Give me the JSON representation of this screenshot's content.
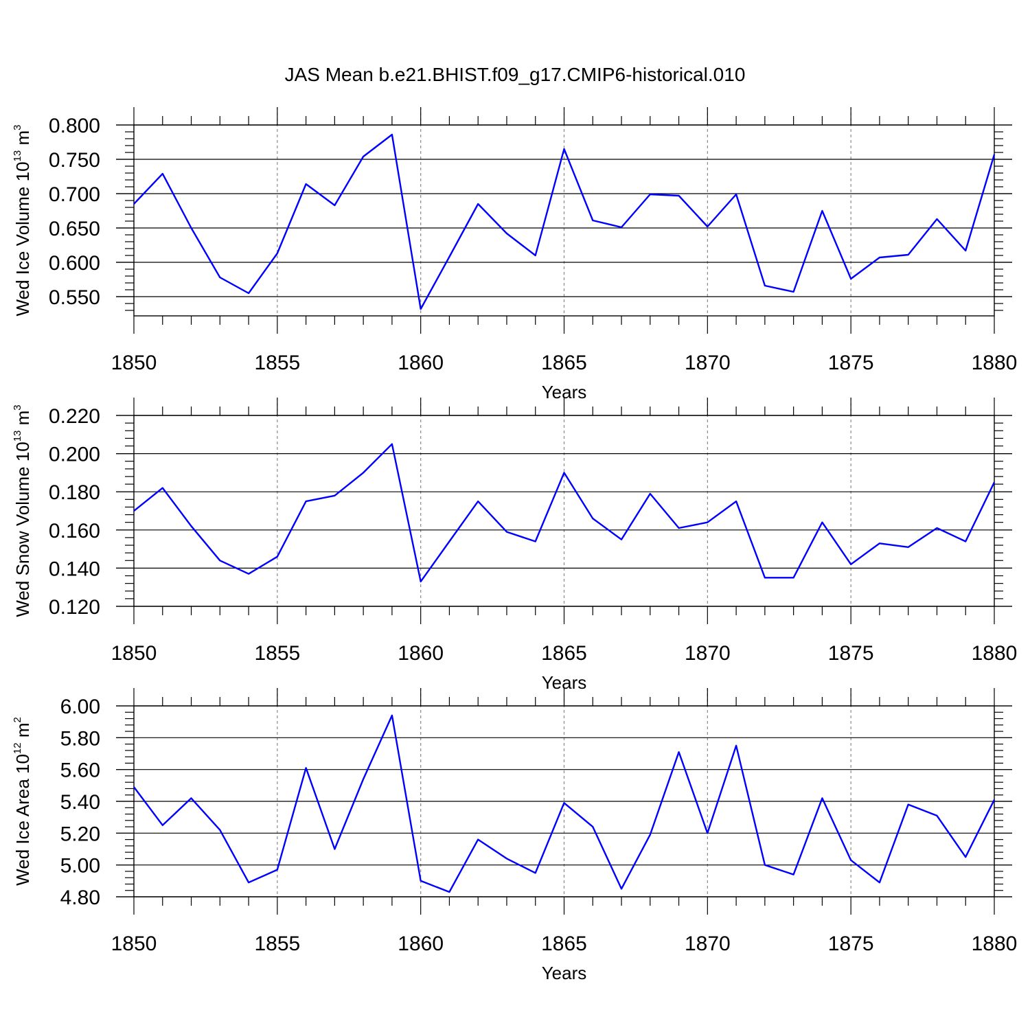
{
  "title": "JAS Mean b.e21.BHIST.f09_g17.CMIP6-historical.010",
  "chart_data": [
    {
      "type": "line",
      "ylabel": {
        "base": "Wed Ice Volume 10",
        "exp": "13",
        "unit": " m",
        "unit_exp": "3"
      },
      "xlabel": "Years",
      "xlim": [
        1850,
        1880
      ],
      "xticks": [
        "1850",
        "1855",
        "1860",
        "1865",
        "1870",
        "1875",
        "1880"
      ],
      "ylim": [
        0.522,
        0.8
      ],
      "yticks": [
        "0.800",
        "0.750",
        "0.700",
        "0.650",
        "0.600",
        "0.550"
      ],
      "color": "#0000ff",
      "x": [
        1850,
        1851,
        1852,
        1853,
        1854,
        1855,
        1856,
        1857,
        1858,
        1859,
        1860,
        1861,
        1862,
        1863,
        1864,
        1865,
        1866,
        1867,
        1868,
        1869,
        1870,
        1871,
        1872,
        1873,
        1874,
        1875,
        1876,
        1877,
        1878,
        1879,
        1880
      ],
      "values": [
        0.685,
        0.729,
        0.65,
        0.578,
        0.555,
        0.613,
        0.714,
        0.683,
        0.754,
        0.786,
        0.532,
        0.608,
        0.685,
        0.642,
        0.61,
        0.765,
        0.661,
        0.651,
        0.699,
        0.697,
        0.652,
        0.699,
        0.566,
        0.557,
        0.675,
        0.576,
        0.607,
        0.611,
        0.663,
        0.617,
        0.757
      ]
    },
    {
      "type": "line",
      "ylabel": {
        "base": "Wed Snow Volume 10",
        "exp": "13",
        "unit": " m",
        "unit_exp": "3"
      },
      "xlabel": "Years",
      "xlim": [
        1850,
        1880
      ],
      "xticks": [
        "1850",
        "1855",
        "1860",
        "1865",
        "1870",
        "1875",
        "1880"
      ],
      "ylim": [
        0.12,
        0.22
      ],
      "yticks": [
        "0.220",
        "0.200",
        "0.180",
        "0.160",
        "0.140",
        "0.120"
      ],
      "color": "#0000ff",
      "x": [
        1850,
        1851,
        1852,
        1853,
        1854,
        1855,
        1856,
        1857,
        1858,
        1859,
        1860,
        1861,
        1862,
        1863,
        1864,
        1865,
        1866,
        1867,
        1868,
        1869,
        1870,
        1871,
        1872,
        1873,
        1874,
        1875,
        1876,
        1877,
        1878,
        1879,
        1880
      ],
      "values": [
        0.17,
        0.182,
        0.162,
        0.144,
        0.137,
        0.146,
        0.175,
        0.178,
        0.19,
        0.205,
        0.133,
        0.154,
        0.175,
        0.159,
        0.154,
        0.19,
        0.166,
        0.155,
        0.179,
        0.161,
        0.164,
        0.175,
        0.135,
        0.135,
        0.164,
        0.142,
        0.153,
        0.151,
        0.161,
        0.154,
        0.185
      ]
    },
    {
      "type": "line",
      "ylabel": {
        "base": "Wed Ice Area 10",
        "exp": "12",
        "unit": " m",
        "unit_exp": "2"
      },
      "xlabel": "Years",
      "xlim": [
        1850,
        1880
      ],
      "xticks": [
        "1850",
        "1855",
        "1860",
        "1865",
        "1870",
        "1875",
        "1880"
      ],
      "ylim": [
        4.8,
        6.0
      ],
      "yticks": [
        "6.00",
        "5.80",
        "5.60",
        "5.40",
        "5.20",
        "5.00",
        "4.80"
      ],
      "color": "#0000ff",
      "x": [
        1850,
        1851,
        1852,
        1853,
        1854,
        1855,
        1856,
        1857,
        1858,
        1859,
        1860,
        1861,
        1862,
        1863,
        1864,
        1865,
        1866,
        1867,
        1868,
        1869,
        1870,
        1871,
        1872,
        1873,
        1874,
        1875,
        1876,
        1877,
        1878,
        1879,
        1880
      ],
      "values": [
        5.49,
        5.25,
        5.42,
        5.22,
        4.89,
        4.97,
        5.61,
        5.1,
        5.54,
        5.94,
        4.9,
        4.83,
        5.16,
        5.04,
        4.95,
        5.39,
        5.24,
        4.85,
        5.19,
        5.71,
        5.2,
        5.75,
        5.0,
        4.94,
        5.42,
        5.03,
        4.89,
        5.38,
        5.31,
        5.05,
        5.41
      ]
    }
  ]
}
